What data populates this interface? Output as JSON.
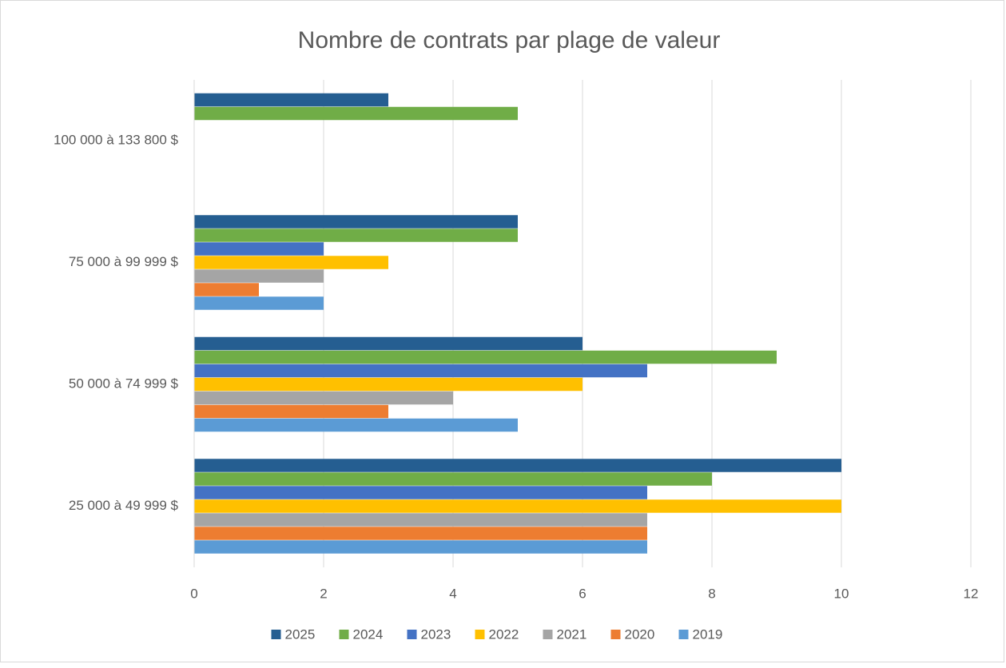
{
  "chart_data": {
    "type": "hbar",
    "title": "Nombre de contrats par plage de valeur",
    "categories": [
      "25 000 à 49 999 $",
      "50 000 à 74 999 $",
      "75 000 à 99 999 $",
      "100 000 à 133 800 $"
    ],
    "series": [
      {
        "name": "2025",
        "color": "#255e91",
        "values": [
          10,
          6,
          5,
          3
        ]
      },
      {
        "name": "2024",
        "color": "#70ad47",
        "values": [
          8,
          9,
          5,
          5
        ]
      },
      {
        "name": "2023",
        "color": "#4472c4",
        "values": [
          7,
          7,
          2,
          null
        ]
      },
      {
        "name": "2022",
        "color": "#ffc000",
        "values": [
          10,
          6,
          3,
          null
        ]
      },
      {
        "name": "2021",
        "color": "#a5a5a5",
        "values": [
          7,
          4,
          2,
          null
        ]
      },
      {
        "name": "2020",
        "color": "#ed7d31",
        "values": [
          7,
          3,
          1,
          null
        ]
      },
      {
        "name": "2019",
        "color": "#5b9bd5",
        "values": [
          7,
          5,
          2,
          null
        ]
      }
    ],
    "xlim": [
      0,
      12
    ],
    "xticks": [
      0,
      2,
      4,
      6,
      8,
      10,
      12
    ],
    "grid": true,
    "legend": "bottom"
  }
}
